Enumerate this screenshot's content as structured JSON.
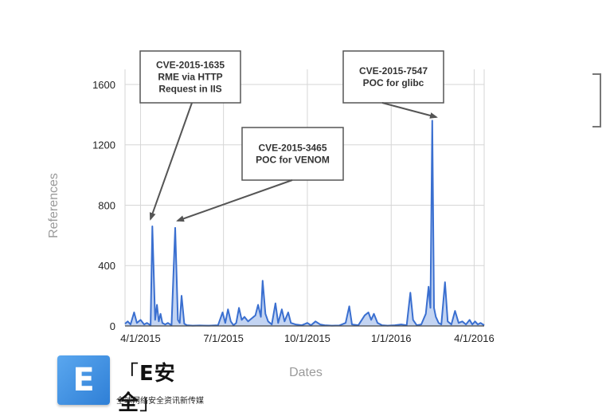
{
  "chart_data": {
    "type": "area",
    "xlabel": "Dates",
    "ylabel": "References",
    "ylim": [
      0,
      1700
    ],
    "xlim": [
      "2015-03-15",
      "2016-04-12"
    ],
    "yticks": [
      0,
      400,
      800,
      1200,
      1600
    ],
    "xticks": [
      {
        "date": "2015-04-01",
        "label": "4/1/2015"
      },
      {
        "date": "2015-07-01",
        "label": "7/1/2015"
      },
      {
        "date": "2015-10-01",
        "label": "10/1/2015"
      },
      {
        "date": "2016-01-01",
        "label": "1/1/2016"
      },
      {
        "date": "2016-04-01",
        "label": "4/1/2016"
      }
    ],
    "grid": true,
    "color": "#3a6fd0",
    "series": [
      {
        "points": [
          [
            "2015-03-15",
            15
          ],
          [
            "2015-03-18",
            30
          ],
          [
            "2015-03-21",
            10
          ],
          [
            "2015-03-25",
            90
          ],
          [
            "2015-03-28",
            20
          ],
          [
            "2015-04-01",
            40
          ],
          [
            "2015-04-05",
            10
          ],
          [
            "2015-04-08",
            20
          ],
          [
            "2015-04-12",
            5
          ],
          [
            "2015-04-14",
            660
          ],
          [
            "2015-04-17",
            40
          ],
          [
            "2015-04-19",
            140
          ],
          [
            "2015-04-21",
            30
          ],
          [
            "2015-04-23",
            80
          ],
          [
            "2015-04-25",
            20
          ],
          [
            "2015-04-28",
            10
          ],
          [
            "2015-05-01",
            20
          ],
          [
            "2015-05-05",
            5
          ],
          [
            "2015-05-09",
            650
          ],
          [
            "2015-05-12",
            40
          ],
          [
            "2015-05-14",
            20
          ],
          [
            "2015-05-16",
            200
          ],
          [
            "2015-05-19",
            15
          ],
          [
            "2015-05-22",
            5
          ],
          [
            "2015-05-28",
            2
          ],
          [
            "2015-06-05",
            3
          ],
          [
            "2015-06-15",
            2
          ],
          [
            "2015-06-25",
            5
          ],
          [
            "2015-06-30",
            90
          ],
          [
            "2015-07-03",
            20
          ],
          [
            "2015-07-06",
            110
          ],
          [
            "2015-07-09",
            30
          ],
          [
            "2015-07-12",
            5
          ],
          [
            "2015-07-15",
            20
          ],
          [
            "2015-07-18",
            120
          ],
          [
            "2015-07-21",
            40
          ],
          [
            "2015-07-24",
            60
          ],
          [
            "2015-07-28",
            30
          ],
          [
            "2015-08-01",
            50
          ],
          [
            "2015-08-05",
            70
          ],
          [
            "2015-08-08",
            140
          ],
          [
            "2015-08-11",
            60
          ],
          [
            "2015-08-13",
            300
          ],
          [
            "2015-08-16",
            80
          ],
          [
            "2015-08-19",
            30
          ],
          [
            "2015-08-23",
            10
          ],
          [
            "2015-08-27",
            150
          ],
          [
            "2015-08-30",
            20
          ],
          [
            "2015-09-03",
            110
          ],
          [
            "2015-09-06",
            30
          ],
          [
            "2015-09-10",
            90
          ],
          [
            "2015-09-13",
            20
          ],
          [
            "2015-09-18",
            10
          ],
          [
            "2015-09-25",
            5
          ],
          [
            "2015-10-01",
            20
          ],
          [
            "2015-10-05",
            5
          ],
          [
            "2015-10-10",
            30
          ],
          [
            "2015-10-15",
            10
          ],
          [
            "2015-10-20",
            5
          ],
          [
            "2015-10-28",
            2
          ],
          [
            "2015-11-05",
            3
          ],
          [
            "2015-11-12",
            20
          ],
          [
            "2015-11-16",
            130
          ],
          [
            "2015-11-19",
            10
          ],
          [
            "2015-11-26",
            5
          ],
          [
            "2015-12-03",
            70
          ],
          [
            "2015-12-07",
            90
          ],
          [
            "2015-12-10",
            40
          ],
          [
            "2015-12-13",
            80
          ],
          [
            "2015-12-17",
            20
          ],
          [
            "2015-12-22",
            5
          ],
          [
            "2015-12-28",
            2
          ],
          [
            "2016-01-05",
            5
          ],
          [
            "2016-01-12",
            10
          ],
          [
            "2016-01-18",
            5
          ],
          [
            "2016-01-22",
            220
          ],
          [
            "2016-01-25",
            40
          ],
          [
            "2016-01-29",
            5
          ],
          [
            "2016-02-03",
            10
          ],
          [
            "2016-02-08",
            80
          ],
          [
            "2016-02-11",
            260
          ],
          [
            "2016-02-13",
            120
          ],
          [
            "2016-02-15",
            1360
          ],
          [
            "2016-02-17",
            120
          ],
          [
            "2016-02-19",
            60
          ],
          [
            "2016-02-22",
            20
          ],
          [
            "2016-02-25",
            10
          ],
          [
            "2016-02-29",
            290
          ],
          [
            "2016-03-03",
            30
          ],
          [
            "2016-03-07",
            10
          ],
          [
            "2016-03-11",
            100
          ],
          [
            "2016-03-15",
            20
          ],
          [
            "2016-03-19",
            30
          ],
          [
            "2016-03-23",
            10
          ],
          [
            "2016-03-27",
            40
          ],
          [
            "2016-03-30",
            10
          ],
          [
            "2016-04-02",
            30
          ],
          [
            "2016-04-05",
            10
          ],
          [
            "2016-04-08",
            20
          ],
          [
            "2016-04-12",
            5
          ]
        ]
      }
    ],
    "annotations": [
      {
        "lines": [
          "CVE-2015-1635",
          "RME via HTTP",
          "Request in IIS"
        ],
        "date": "2015-04-14",
        "value": 660
      },
      {
        "lines": [
          "CVE-2015-3465",
          "POC for VENOM"
        ],
        "date": "2015-05-09",
        "value": 650
      },
      {
        "lines": [
          "CVE-2015-7547",
          "POC for glibc"
        ],
        "date": "2016-02-15",
        "value": 1360
      }
    ]
  },
  "logo": {
    "mark": "E",
    "bracket_open": "「",
    "brand": "E安全",
    "bracket_close": "」",
    "tagline": "全球网络安全资讯新传媒"
  }
}
